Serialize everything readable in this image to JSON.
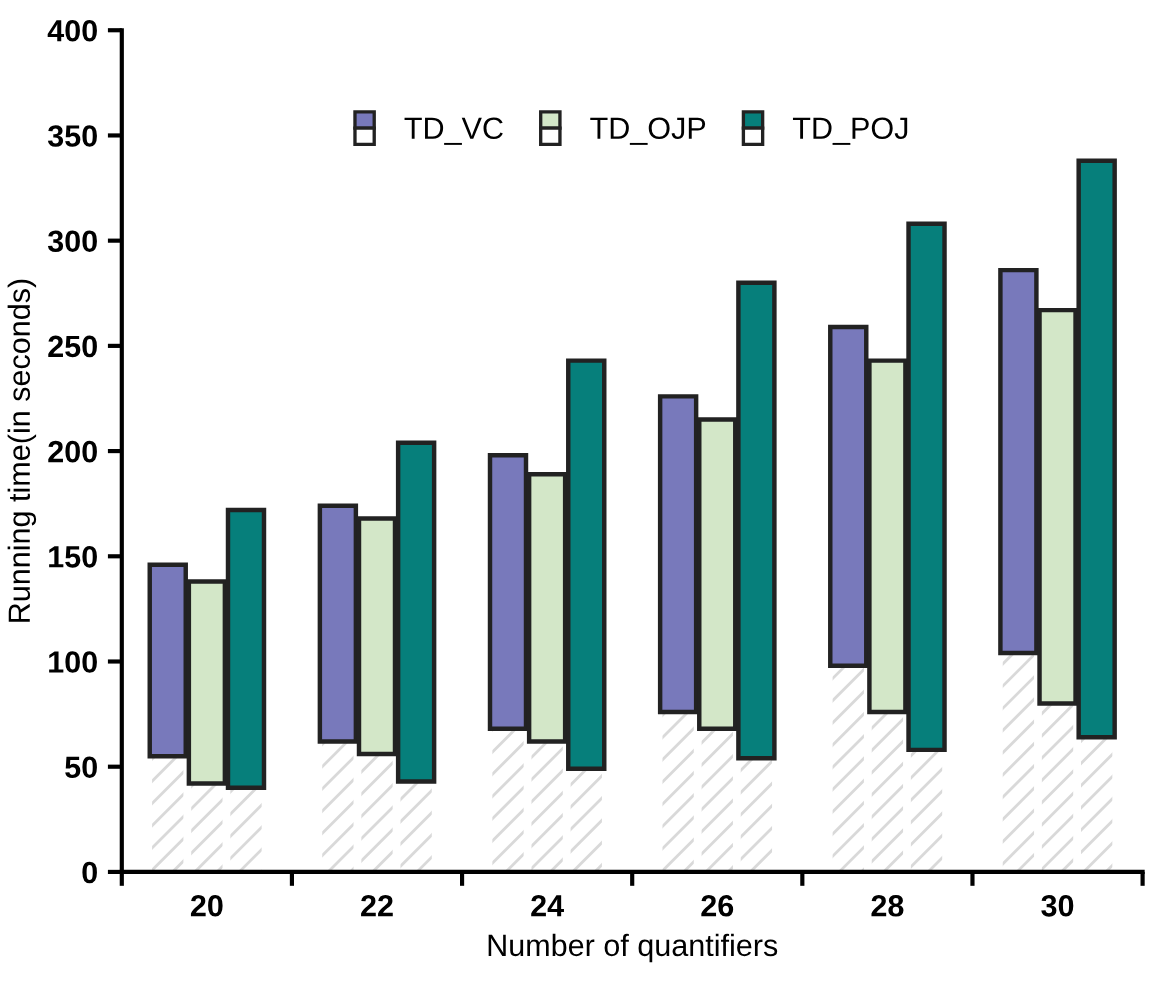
{
  "chart_data": {
    "type": "bar",
    "xlabel": "Number of quantifiers",
    "ylabel": "Running time(in seconds)",
    "categories": [
      "20",
      "22",
      "24",
      "26",
      "28",
      "30"
    ],
    "series": [
      {
        "color": "#ffffff",
        "values": [
          55,
          62,
          68,
          76,
          98,
          104
        ]
      },
      {
        "name": "TD_VC",
        "color": "#7879bb",
        "base": [
          55,
          62,
          68,
          76,
          98,
          104
        ],
        "values": [
          91,
          112,
          130,
          150,
          161,
          182
        ]
      },
      {
        "color": "#ffffff",
        "values": [
          42,
          56,
          62,
          68,
          76,
          80
        ]
      },
      {
        "name": "TD_OJP",
        "color": "#d3e7c8",
        "base": [
          42,
          56,
          62,
          68,
          76,
          80
        ],
        "values": [
          96,
          112,
          127,
          147,
          167,
          187
        ]
      },
      {
        "color": "#ffffff",
        "values": [
          40,
          43,
          49,
          54,
          58,
          64
        ]
      },
      {
        "name": "TD_POJ",
        "color": "#067f7b",
        "base": [
          40,
          43,
          49,
          54,
          58,
          64
        ],
        "values": [
          132,
          161,
          194,
          226,
          250,
          274
        ]
      }
    ],
    "ylim": [
      0,
      400
    ],
    "yticks": [
      0,
      50,
      100,
      150,
      200,
      250,
      300,
      350,
      400
    ],
    "grid": false,
    "legend": "top"
  }
}
